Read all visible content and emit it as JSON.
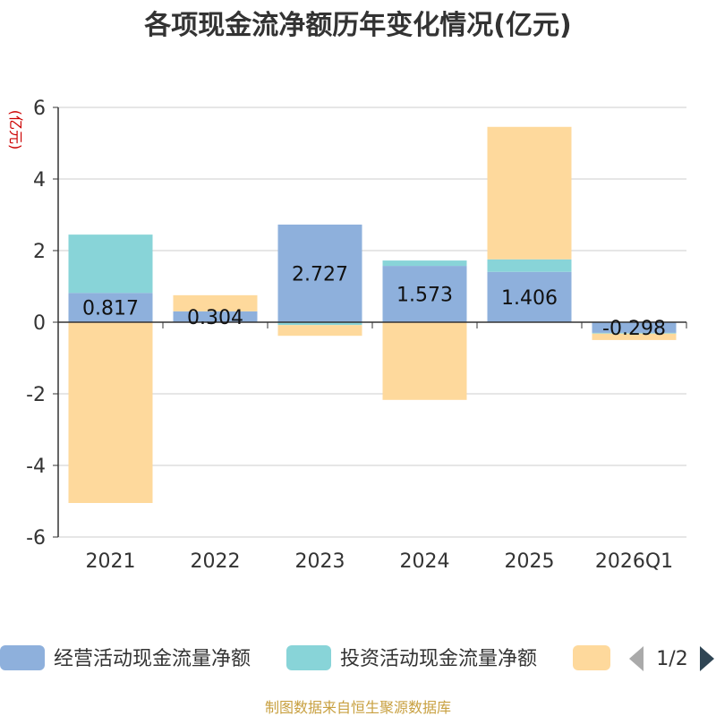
{
  "chart_data": {
    "type": "bar",
    "stacked": true,
    "title": "各项现金流净额历年变化情况(亿元)",
    "ylabel": "(亿元)",
    "xlabel": "",
    "ylim": [
      -6,
      6
    ],
    "yticks": [
      6,
      4,
      2,
      0,
      -2,
      -4,
      -6
    ],
    "ytick_labels": [
      "6",
      "4",
      "2",
      "0",
      "-2",
      "-4",
      "-6"
    ],
    "categories": [
      "2021",
      "2022",
      "2023",
      "2024",
      "2025",
      "2026Q1"
    ],
    "series": [
      {
        "name": "经营活动现金流量净额",
        "color": "#8eb0dc",
        "values": [
          0.817,
          0.304,
          2.727,
          1.573,
          1.406,
          -0.298
        ],
        "labels": [
          "0.817",
          "0.304",
          "2.727",
          "1.573",
          "1.406",
          "-0.298"
        ]
      },
      {
        "name": "投资活动现金流量净额",
        "color": "#88d4d8",
        "values": [
          1.63,
          0.0,
          -0.08,
          0.15,
          0.35,
          -0.02
        ],
        "labels": []
      },
      {
        "name": "",
        "color": "#fed99c",
        "values": [
          -5.05,
          0.45,
          -0.3,
          -2.17,
          3.7,
          -0.18
        ],
        "labels": []
      }
    ],
    "legend": {
      "position": "bottom",
      "page_label": "1/2"
    },
    "grid": true,
    "source": "制图数据来自恒生聚源数据库"
  }
}
